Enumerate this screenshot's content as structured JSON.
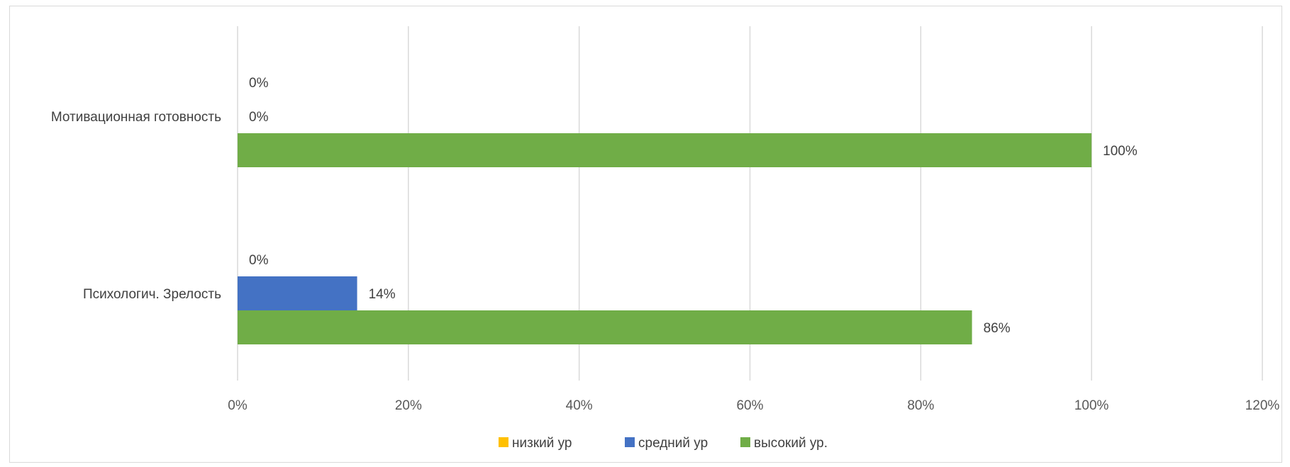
{
  "chart_data": {
    "type": "bar",
    "orientation": "horizontal",
    "categories": [
      "Мотивационная готовность",
      "Психологич. Зрелость"
    ],
    "series": [
      {
        "name": "низкий ур",
        "color": "#FFC000",
        "values": [
          0,
          0
        ],
        "labels": [
          "0%",
          "0%"
        ]
      },
      {
        "name": "средний ур",
        "color": "#4472C4",
        "values": [
          0,
          14
        ],
        "labels": [
          "0%",
          "14%"
        ]
      },
      {
        "name": "высокий ур.",
        "color": "#70AD47",
        "values": [
          100,
          86
        ],
        "labels": [
          "100%",
          "86%"
        ]
      }
    ],
    "xlim": [
      0,
      120
    ],
    "xticks": [
      "0%",
      "20%",
      "40%",
      "60%",
      "80%",
      "100%",
      "120%"
    ],
    "grid": "vertical",
    "legend": "bottom"
  }
}
